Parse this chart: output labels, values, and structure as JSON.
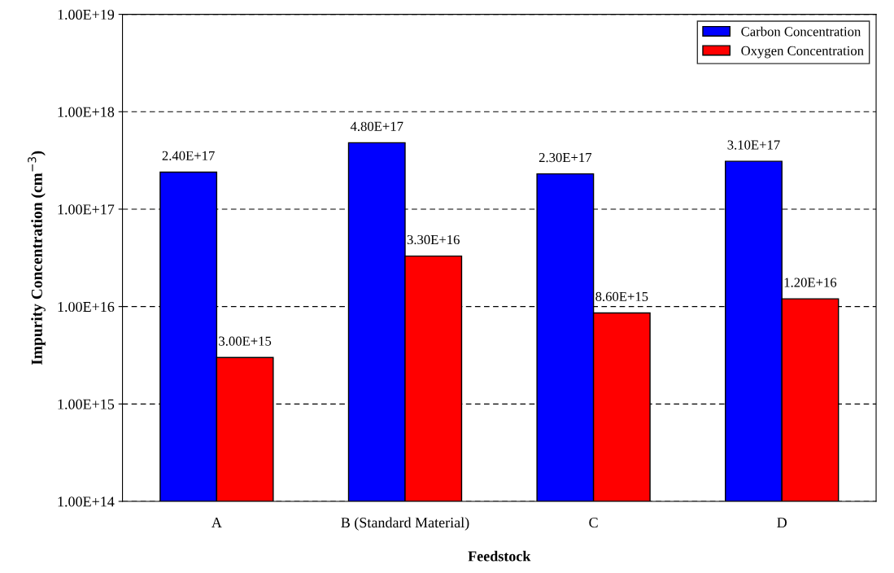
{
  "chart_data": {
    "type": "bar",
    "xlabel": "Feedstock",
    "ylabel": "Impurity Concentration (cm$^{−3}$)",
    "categories": [
      "A",
      "B (Standard Material)",
      "C",
      "D"
    ],
    "series": [
      {
        "name": "Carbon Concentration",
        "color": "#0000ff",
        "values": [
          2.4e+17,
          4.8e+17,
          2.3e+17,
          3.1e+17
        ],
        "value_labels": [
          "2.40E+17",
          "4.80E+17",
          "2.30E+17",
          "3.10E+17"
        ]
      },
      {
        "name": "Oxygen Concentration",
        "color": "#ff0000",
        "values": [
          3000000000000000.0,
          3.3e+16,
          8600000000000000.0,
          1.2e+16
        ],
        "value_labels": [
          "3.00E+15",
          "3.30E+16",
          "8.60E+15",
          "1.20E+16"
        ]
      }
    ],
    "log": "y",
    "ylim": [
      100000000000000.0,
      1e+19
    ],
    "yticks": [
      {
        "value": 100000000000000.0,
        "label": "1.00E+14"
      },
      {
        "value": 1000000000000000.0,
        "label": "1.00E+15"
      },
      {
        "value": 1e+16,
        "label": "1.00E+16"
      },
      {
        "value": 1e+17,
        "label": "1.00E+17"
      },
      {
        "value": 1e+18,
        "label": "1.00E+18"
      },
      {
        "value": 1e+19,
        "label": "1.00E+19"
      }
    ],
    "grid": "y",
    "legend": "top right"
  }
}
